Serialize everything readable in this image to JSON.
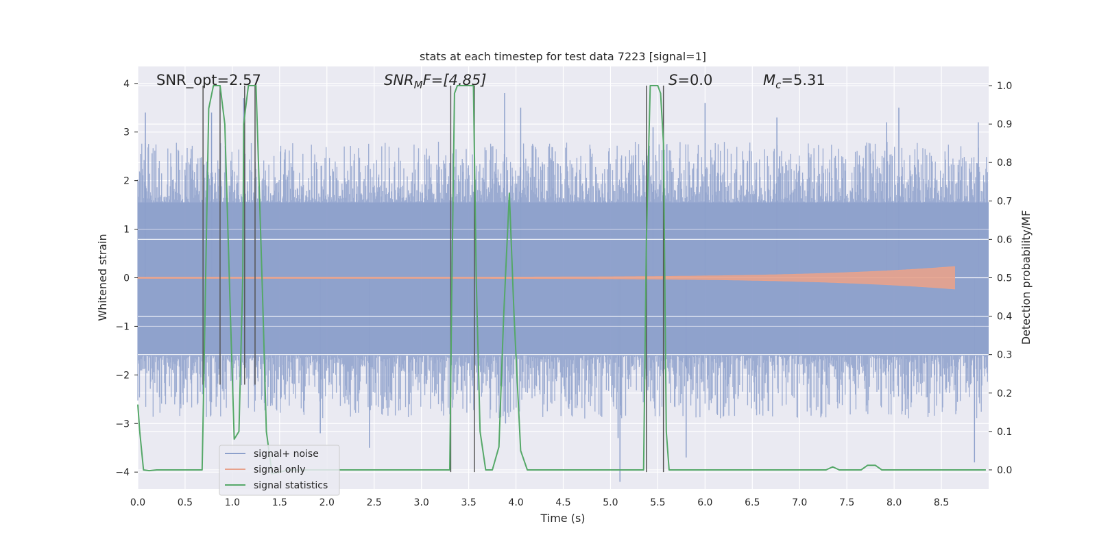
{
  "chart_data": {
    "type": "line",
    "title": "stats at each timestep for test data 7223 [signal=1]",
    "xlabel": "Time (s)",
    "ylabel": "Whitened strain",
    "y2label": "Detection probability/MF",
    "xlim": [
      0.0,
      9.0
    ],
    "ylim": [
      -4.35,
      4.35
    ],
    "y2lim": [
      -0.05,
      1.05
    ],
    "xticks": [
      "0.0",
      "0.5",
      "1.0",
      "1.5",
      "2.0",
      "2.5",
      "3.0",
      "3.5",
      "4.0",
      "4.5",
      "5.0",
      "5.5",
      "6.0",
      "6.5",
      "7.0",
      "7.5",
      "8.0",
      "8.5"
    ],
    "yticks": [
      "4",
      "3",
      "2",
      "1",
      "0",
      "−1",
      "−2",
      "−3",
      "−4"
    ],
    "y2ticks": [
      "1.0",
      "0.9",
      "0.8",
      "0.7",
      "0.6",
      "0.5",
      "0.4",
      "0.3",
      "0.2",
      "0.1",
      "0.0"
    ],
    "grid": true,
    "legend_position": "lower-left",
    "annotations": {
      "snr_opt": "SNR_opt=2.57",
      "snr_mf_pre": "SNR",
      "snr_mf_sub": "M",
      "snr_mf_post": "F=[4.85]",
      "s_pre": "S",
      "s_post": "=0.0",
      "mc_pre": "M",
      "mc_sub": "c",
      "mc_post": "=5.31"
    },
    "series": [
      {
        "name": "signal+ noise",
        "color": "#8da0cb",
        "description_kind": "noise",
        "band": [
          -1.6,
          1.55
        ],
        "envelope": [
          2.2,
          -2.3
        ],
        "spikes": [
          {
            "x": 0.08,
            "y": 3.4
          },
          {
            "x": 0.78,
            "y": 3.4
          },
          {
            "x": 1.12,
            "y": 3.7
          },
          {
            "x": 3.88,
            "y": 3.8
          },
          {
            "x": 3.89,
            "y": -3.0
          },
          {
            "x": 4.05,
            "y": 3.5
          },
          {
            "x": 5.08,
            "y": -3.3
          },
          {
            "x": 5.1,
            "y": -4.2
          },
          {
            "x": 5.45,
            "y": 3.1
          },
          {
            "x": 5.8,
            "y": -3.7
          },
          {
            "x": 6.0,
            "y": 3.6
          },
          {
            "x": 8.05,
            "y": 3.5
          },
          {
            "x": 8.85,
            "y": -3.8
          },
          {
            "x": 8.89,
            "y": 3.2
          },
          {
            "x": 2.45,
            "y": -3.5
          },
          {
            "x": 1.93,
            "y": -3.2
          },
          {
            "x": 6.76,
            "y": 3.3
          },
          {
            "x": 7.92,
            "y": 3.2
          }
        ]
      },
      {
        "name": "signal only",
        "color": "#e8a28c",
        "description_kind": "chirp",
        "x_end": 8.65,
        "amp_end": 0.22
      },
      {
        "name": "signal statistics",
        "color": "#55a868",
        "axis": "y2",
        "x": [
          0.0,
          0.02,
          0.06,
          0.12,
          0.2,
          0.68,
          0.69,
          0.75,
          0.8,
          0.87,
          0.92,
          0.98,
          1.02,
          1.07,
          1.11,
          1.12,
          1.17,
          1.22,
          1.25,
          1.27,
          1.32,
          1.36,
          1.42,
          1.6,
          3.2,
          3.3,
          3.32,
          3.35,
          3.38,
          3.45,
          3.52,
          3.55,
          3.58,
          3.62,
          3.68,
          3.75,
          3.82,
          3.87,
          3.93,
          3.98,
          4.05,
          4.12,
          4.18,
          4.3,
          5.1,
          5.35,
          5.38,
          5.42,
          5.46,
          5.5,
          5.53,
          5.56,
          5.59,
          5.62,
          5.7,
          6.0,
          7.28,
          7.35,
          7.42,
          7.5,
          7.65,
          7.72,
          7.8,
          7.87,
          8.0,
          8.97
        ],
        "values": [
          0.17,
          0.1,
          0.0,
          -0.002,
          0.0,
          0.0,
          0.12,
          0.94,
          1.0,
          1.0,
          0.9,
          0.4,
          0.08,
          0.1,
          0.5,
          0.9,
          1.0,
          1.0,
          1.0,
          0.85,
          0.45,
          0.1,
          -0.01,
          0.0,
          0.0,
          0.0,
          0.45,
          0.98,
          1.0,
          1.0,
          1.0,
          1.0,
          0.5,
          0.1,
          0.0,
          0.0,
          0.06,
          0.4,
          0.72,
          0.4,
          0.05,
          0.0,
          0.0,
          0.0,
          0.0,
          0.0,
          0.6,
          1.0,
          1.0,
          1.0,
          0.98,
          0.85,
          0.1,
          0.0,
          0.0,
          0.0,
          0.0,
          0.008,
          0.0,
          0.0,
          0.0,
          0.012,
          0.012,
          0.0,
          0.0,
          0.0
        ]
      }
    ],
    "vertical_lines": [
      {
        "x": 0.69,
        "y_top": 1.0,
        "y_bottom": -2.2
      },
      {
        "x": 0.87,
        "y_top": 1.0,
        "y_bottom": -2.2
      },
      {
        "x": 1.13,
        "y_top": 1.0,
        "y_bottom": -2.2
      },
      {
        "x": 1.24,
        "y_top": 1.0,
        "y_bottom": -2.2
      },
      {
        "x": 3.31,
        "y_top": 1.0,
        "y_bottom": -4.0
      },
      {
        "x": 3.56,
        "y_top": 1.0,
        "y_bottom": -4.0
      },
      {
        "x": 5.38,
        "y_top": 1.0,
        "y_bottom": -4.0
      },
      {
        "x": 5.56,
        "y_top": 1.0,
        "y_bottom": -4.0
      }
    ],
    "colors": {
      "background": "#eaeaf2",
      "grid": "#ffffff",
      "vline": "#555555"
    }
  }
}
